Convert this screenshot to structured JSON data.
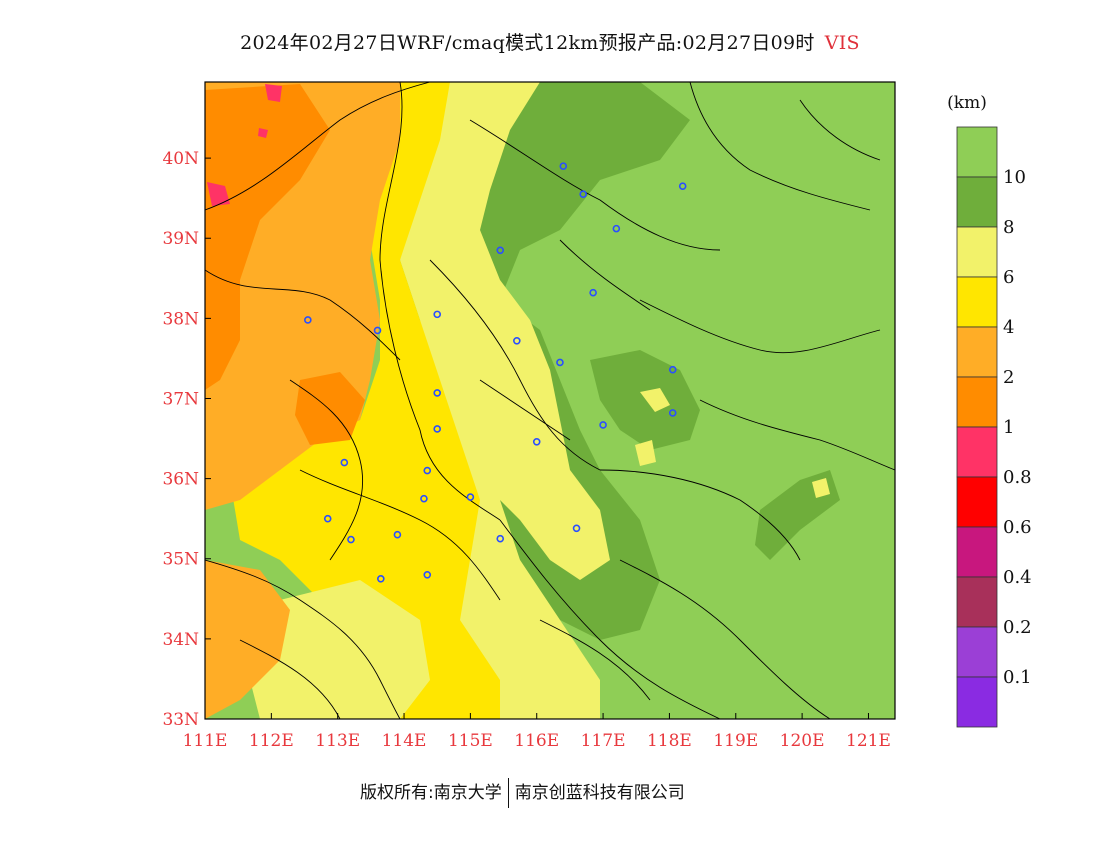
{
  "title": {
    "main": "2024年02月27日WRF/cmaq模式12km预报产品:02月27日09时",
    "variable": "VIS"
  },
  "colorbar": {
    "unit": "(km)",
    "bins": [
      {
        "color": "#8a2be2",
        "label": "0.1"
      },
      {
        "color": "#9b3fd6",
        "label": "0.2"
      },
      {
        "color": "#a8305a",
        "label": "0.4"
      },
      {
        "color": "#c8177e",
        "label": "0.6"
      },
      {
        "color": "#ff0000",
        "label": "0.8"
      },
      {
        "color": "#ff3366",
        "label": "1"
      },
      {
        "color": "#ff8c00",
        "label": "2"
      },
      {
        "color": "#ffad26",
        "label": "4"
      },
      {
        "color": "#ffe600",
        "label": "6"
      },
      {
        "color": "#f2f26a",
        "label": "8"
      },
      {
        "color": "#6fae3b",
        "label": "10"
      },
      {
        "color": "#8fce56",
        "label": ""
      }
    ]
  },
  "axes": {
    "x_ticks": [
      "111E",
      "112E",
      "113E",
      "114E",
      "115E",
      "116E",
      "117E",
      "118E",
      "119E",
      "120E",
      "121E"
    ],
    "y_ticks": [
      "33N",
      "34N",
      "35N",
      "36N",
      "37N",
      "38N",
      "39N",
      "40N"
    ],
    "tick_color": "#e8383d"
  },
  "footer": {
    "left": "版权所有:南京大学",
    "right": "南京创蓝科技有限公司"
  },
  "cities": [
    {
      "lon": 116.4,
      "lat": 39.9
    },
    {
      "lon": 116.7,
      "lat": 39.55
    },
    {
      "lon": 117.2,
      "lat": 39.12
    },
    {
      "lon": 118.2,
      "lat": 39.65
    },
    {
      "lon": 115.45,
      "lat": 38.85
    },
    {
      "lon": 116.85,
      "lat": 38.32
    },
    {
      "lon": 114.5,
      "lat": 38.05
    },
    {
      "lon": 112.55,
      "lat": 37.98
    },
    {
      "lon": 113.6,
      "lat": 37.85
    },
    {
      "lon": 115.7,
      "lat": 37.72
    },
    {
      "lon": 116.35,
      "lat": 37.45
    },
    {
      "lon": 118.05,
      "lat": 37.36
    },
    {
      "lon": 114.5,
      "lat": 37.07
    },
    {
      "lon": 118.05,
      "lat": 36.82
    },
    {
      "lon": 117.0,
      "lat": 36.67
    },
    {
      "lon": 114.5,
      "lat": 36.62
    },
    {
      "lon": 116.0,
      "lat": 36.46
    },
    {
      "lon": 113.1,
      "lat": 36.2
    },
    {
      "lon": 114.35,
      "lat": 36.1
    },
    {
      "lon": 114.3,
      "lat": 35.75
    },
    {
      "lon": 115.0,
      "lat": 35.77
    },
    {
      "lon": 112.85,
      "lat": 35.5
    },
    {
      "lon": 116.6,
      "lat": 35.38
    },
    {
      "lon": 113.9,
      "lat": 35.3
    },
    {
      "lon": 113.2,
      "lat": 35.24
    },
    {
      "lon": 115.45,
      "lat": 35.25
    },
    {
      "lon": 114.35,
      "lat": 34.8
    },
    {
      "lon": 113.65,
      "lat": 34.75
    }
  ]
}
